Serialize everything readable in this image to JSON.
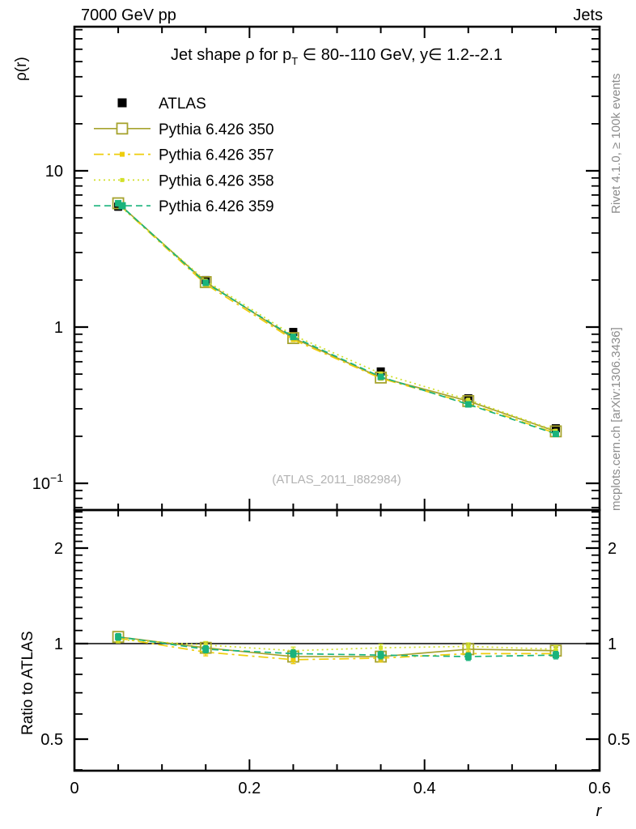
{
  "header": {
    "left": "7000 GeV pp",
    "right": "Jets"
  },
  "side_texts": {
    "rivet": "Rivet 4.1.0, ≥ 100k events",
    "mcplots": "mcplots.cern.ch [arXiv:1306.3436]"
  },
  "chart_data": {
    "type": "line",
    "title": {
      "pre": "Jet shape ρ for p",
      "sub": "T",
      "post": " ∈ 80--110 GeV, y∈ 1.2--2.1"
    },
    "watermark": "(ATLAS_2011_I882984)",
    "xlabel": "r",
    "ylabel": "ρ(r)",
    "ratio_ylabel": "Ratio to ATLAS",
    "xlim": [
      0,
      0.6
    ],
    "ylim_main": [
      0.068,
      84
    ],
    "ylim_ratio": [
      0.4,
      2.64
    ],
    "y_scale": "log",
    "grid": false,
    "legend_position": "top-left-inside",
    "x": [
      0.05,
      0.15,
      0.25,
      0.35,
      0.45,
      0.55
    ],
    "x_ticks": [
      {
        "v": 0,
        "label": "0"
      },
      {
        "v": 0.2,
        "label": "0.2"
      },
      {
        "v": 0.4,
        "label": "0.4"
      },
      {
        "v": 0.6,
        "label": "0.6"
      }
    ],
    "x_minor_step": 0.05,
    "y_ticks_main": [
      {
        "v": 10,
        "label": "10"
      },
      {
        "v": 1,
        "label": "1"
      },
      {
        "v": 0.1,
        "label": "10",
        "exp": "−1"
      }
    ],
    "y_ticks_ratio": [
      {
        "v": 2,
        "label": "2"
      },
      {
        "v": 1,
        "label": "1"
      },
      {
        "v": 0.5,
        "label": "0.5"
      }
    ],
    "series": [
      {
        "name": "ATLAS",
        "color": "#000000",
        "line": "none",
        "marker": "filled-square",
        "marker_size": 10,
        "legend_marker_size": 11,
        "err_frac": 0.05,
        "is_reference": true,
        "values": [
          5.9,
          2.0,
          0.93,
          0.52,
          0.35,
          0.225
        ]
      },
      {
        "name": "Pythia 6.426 350",
        "color": "#a6a32e",
        "line": "solid",
        "marker": "open-square",
        "marker_size": 13,
        "legend_marker_size": 13,
        "values": [
          6.2,
          1.94,
          0.85,
          0.475,
          0.336,
          0.215
        ],
        "ratio": [
          1.05,
          0.97,
          0.91,
          0.91,
          0.96,
          0.95
        ]
      },
      {
        "name": "Pythia 6.426 357",
        "color": "#eecd0c",
        "line": "dashdot",
        "marker": "filled-square",
        "marker_size": 6,
        "legend_marker_size": 6,
        "values": [
          6.14,
          1.88,
          0.83,
          0.47,
          0.325,
          0.209
        ],
        "ratio": [
          1.04,
          0.94,
          0.89,
          0.9,
          0.93,
          0.93
        ]
      },
      {
        "name": "Pythia 6.426 358",
        "color": "#d2e02a",
        "line": "dotted",
        "marker": "filled-square",
        "marker_size": 5,
        "legend_marker_size": 5,
        "values": [
          6.08,
          1.98,
          0.885,
          0.505,
          0.343,
          0.217
        ],
        "ratio": [
          1.03,
          0.99,
          0.95,
          0.97,
          0.98,
          0.96
        ]
      },
      {
        "name": "Pythia 6.426 359",
        "color": "#19b37c",
        "line": "dashed",
        "marker": "filled-square",
        "marker_size": 8,
        "legend_marker_size": 9,
        "values": [
          6.2,
          1.92,
          0.865,
          0.48,
          0.32,
          0.207
        ],
        "ratio": [
          1.05,
          0.96,
          0.93,
          0.92,
          0.91,
          0.92
        ]
      }
    ]
  }
}
